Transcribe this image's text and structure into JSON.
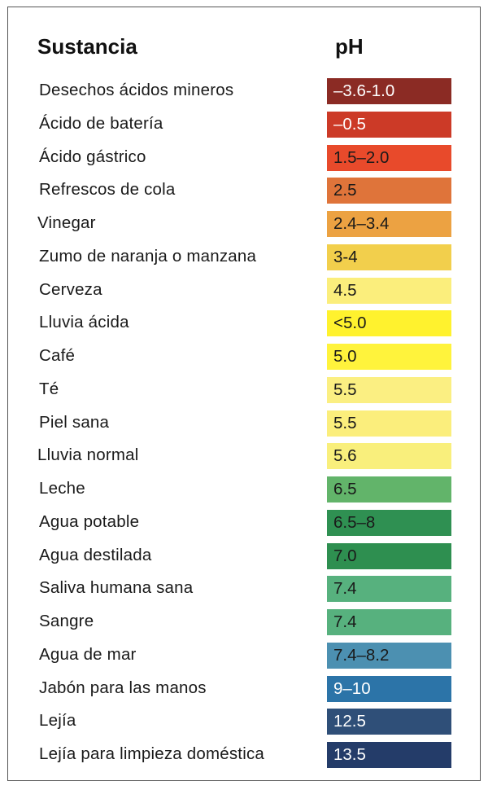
{
  "header": {
    "substance_label": "Sustancia",
    "ph_label": "pH"
  },
  "rows": [
    {
      "name": "Desechos ácidos mineros",
      "ph": "–3.6-1.0",
      "color": "#8b2b24",
      "light": true
    },
    {
      "name": "Ácido de batería",
      "ph": "–0.5",
      "color": "#cc3a27",
      "light": true
    },
    {
      "name": "Ácido gástrico",
      "ph": "1.5–2.0",
      "color": "#e84a2b",
      "light": false
    },
    {
      "name": "Refrescos de cola",
      "ph": "2.5",
      "color": "#df743a",
      "light": false
    },
    {
      "name": "Vinegar",
      "ph": "2.4–3.4",
      "color": "#eca242",
      "light": false
    },
    {
      "name": "Zumo de naranja o manzana",
      "ph": "3-4",
      "color": "#f2cf4c",
      "light": false
    },
    {
      "name": "Cerveza",
      "ph": "4.5",
      "color": "#fbee7c",
      "light": false
    },
    {
      "name": "Lluvia ácida",
      "ph": "<5.0",
      "color": "#fff22e",
      "light": false
    },
    {
      "name": "Café",
      "ph": "5.0",
      "color": "#fff33c",
      "light": false
    },
    {
      "name": "Té",
      "ph": "5.5",
      "color": "#fbef82",
      "light": false
    },
    {
      "name": "Piel sana",
      "ph": "5.5",
      "color": "#fbee7c",
      "light": false
    },
    {
      "name": "Lluvia normal",
      "ph": "5.6",
      "color": "#f9ef7c",
      "light": false
    },
    {
      "name": "Leche",
      "ph": "6.5",
      "color": "#62b46a",
      "light": false
    },
    {
      "name": "Agua potable",
      "ph": "6.5–8",
      "color": "#2f9052",
      "light": false
    },
    {
      "name": "Agua destilada",
      "ph": "7.0",
      "color": "#2e8f50",
      "light": false
    },
    {
      "name": "Saliva humana sana",
      "ph": "7.4",
      "color": "#57b17e",
      "light": false
    },
    {
      "name": "Sangre",
      "ph": "7.4",
      "color": "#57b17e",
      "light": false
    },
    {
      "name": "Agua de mar",
      "ph": "7.4–8.2",
      "color": "#4c90b1",
      "light": false
    },
    {
      "name": "Jabón para las manos",
      "ph": "9–10",
      "color": "#2c74a8",
      "light": true
    },
    {
      "name": "Lejía",
      "ph": "12.5",
      "color": "#2f4f78",
      "light": true
    },
    {
      "name": "Lejía para limpieza doméstica",
      "ph": "13.5",
      "color": "#243c69",
      "light": true
    }
  ]
}
